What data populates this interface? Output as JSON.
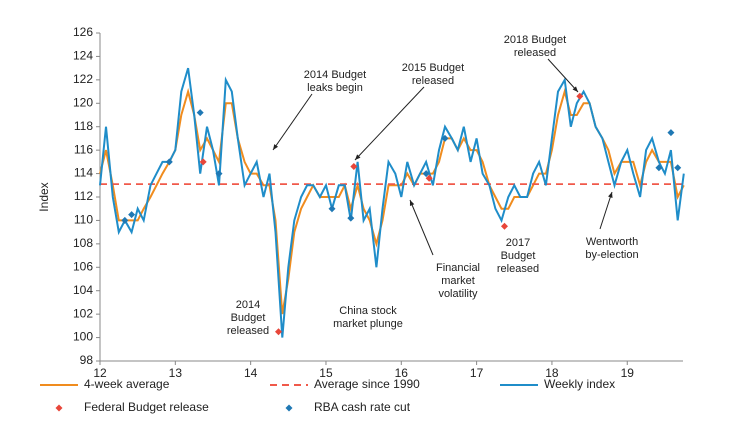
{
  "chart_data": {
    "type": "line",
    "ylabel": "Index",
    "x": [
      12.0,
      12.08,
      12.17,
      12.25,
      12.33,
      12.42,
      12.5,
      12.58,
      12.67,
      12.75,
      12.83,
      12.92,
      13.0,
      13.08,
      13.17,
      13.25,
      13.33,
      13.42,
      13.5,
      13.58,
      13.67,
      13.75,
      13.83,
      13.92,
      14.0,
      14.08,
      14.17,
      14.25,
      14.33,
      14.42,
      14.5,
      14.58,
      14.67,
      14.75,
      14.83,
      14.92,
      15.0,
      15.08,
      15.17,
      15.25,
      15.33,
      15.42,
      15.5,
      15.58,
      15.67,
      15.75,
      15.83,
      15.92,
      16.0,
      16.08,
      16.17,
      16.25,
      16.33,
      16.42,
      16.5,
      16.58,
      16.67,
      16.75,
      16.83,
      16.92,
      17.0,
      17.08,
      17.17,
      17.25,
      17.33,
      17.42,
      17.5,
      17.58,
      17.67,
      17.75,
      17.83,
      17.92,
      18.0,
      18.08,
      18.17,
      18.25,
      18.33,
      18.42,
      18.5,
      18.58,
      18.67,
      18.75,
      18.83,
      18.92,
      19.0,
      19.08,
      19.17,
      19.25,
      19.33,
      19.42,
      19.5,
      19.58,
      19.67,
      19.75
    ],
    "series": [
      {
        "name": "4-week average",
        "color": "#f08c1e",
        "style": "solid",
        "values": [
          114,
          116,
          113,
          110,
          110,
          110,
          110,
          111,
          112,
          113,
          114,
          115,
          116,
          119,
          121,
          119,
          116,
          117,
          116,
          115,
          120,
          120,
          117,
          115,
          114,
          114,
          113,
          113,
          110,
          102,
          105,
          109,
          111,
          112,
          113,
          112,
          112,
          112,
          112,
          113,
          111,
          113,
          111,
          110,
          108,
          110,
          113,
          113,
          113,
          114,
          113,
          114,
          114,
          114,
          115,
          117,
          117,
          116,
          117,
          116,
          116,
          115,
          113,
          112,
          111,
          111,
          112,
          112,
          112,
          113,
          114,
          114,
          116,
          119,
          121,
          119,
          119,
          120,
          120,
          118,
          117,
          116,
          114,
          115,
          115,
          115,
          113,
          115,
          116,
          115,
          115,
          115,
          112,
          113
        ]
      },
      {
        "name": "Average since 1990",
        "color": "#f0594a",
        "style": "dashed",
        "values": [
          113.1,
          113.1,
          113.1,
          113.1,
          113.1,
          113.1,
          113.1,
          113.1,
          113.1,
          113.1,
          113.1,
          113.1,
          113.1,
          113.1,
          113.1,
          113.1,
          113.1,
          113.1,
          113.1,
          113.1,
          113.1,
          113.1,
          113.1,
          113.1,
          113.1,
          113.1,
          113.1,
          113.1,
          113.1,
          113.1,
          113.1,
          113.1,
          113.1,
          113.1,
          113.1,
          113.1,
          113.1,
          113.1,
          113.1,
          113.1,
          113.1,
          113.1,
          113.1,
          113.1,
          113.1,
          113.1,
          113.1,
          113.1,
          113.1,
          113.1,
          113.1,
          113.1,
          113.1,
          113.1,
          113.1,
          113.1,
          113.1,
          113.1,
          113.1,
          113.1,
          113.1,
          113.1,
          113.1,
          113.1,
          113.1,
          113.1,
          113.1,
          113.1,
          113.1,
          113.1,
          113.1,
          113.1,
          113.1,
          113.1,
          113.1,
          113.1,
          113.1,
          113.1,
          113.1,
          113.1,
          113.1,
          113.1,
          113.1,
          113.1,
          113.1,
          113.1,
          113.1,
          113.1,
          113.1,
          113.1,
          113.1,
          113.1,
          113.1,
          113.1
        ]
      },
      {
        "name": "Weekly index",
        "color": "#1f8dc9",
        "style": "solid",
        "values": [
          113,
          118,
          112,
          109,
          110,
          109,
          111,
          110,
          113,
          114,
          115,
          115,
          116,
          121,
          123,
          119,
          114,
          118,
          116,
          113,
          122,
          121,
          117,
          113,
          114,
          115,
          112,
          114,
          109,
          100,
          106,
          110,
          112,
          113,
          113,
          112,
          113,
          111,
          113,
          113,
          110,
          115,
          110,
          111,
          106,
          111,
          115,
          114,
          112,
          115,
          113,
          114,
          115,
          113,
          116,
          118,
          117,
          116,
          118,
          115,
          117,
          114,
          113,
          111,
          110,
          112,
          113,
          112,
          112,
          114,
          115,
          113,
          117,
          121,
          122,
          118,
          120,
          121,
          120,
          118,
          117,
          115,
          113,
          115,
          116,
          114,
          112,
          116,
          117,
          115,
          114,
          116,
          110,
          114
        ]
      }
    ],
    "markers": [
      {
        "name": "Federal Budget release",
        "color": "#e8463a",
        "x": [
          13.37,
          14.37,
          15.37,
          16.37,
          17.37,
          18.37
        ],
        "values": [
          115,
          100.5,
          114.6,
          113.6,
          109.5,
          120.6
        ]
      },
      {
        "name": "RBA cash rate cut",
        "color": "#1f78b4",
        "x": [
          12.33,
          12.42,
          12.92,
          13.33,
          13.58,
          15.08,
          15.33,
          16.33,
          16.58,
          19.42,
          19.58,
          19.67
        ],
        "values": [
          110,
          110.5,
          115,
          119.2,
          114,
          111,
          110.2,
          114,
          117,
          114.5,
          117.5,
          114.5
        ]
      }
    ],
    "annotations": [
      {
        "lines": [
          "2014 Budget",
          "leaks begin"
        ]
      },
      {
        "lines": [
          "2015 Budget",
          "released"
        ]
      },
      {
        "lines": [
          "2018 Budget",
          "released"
        ]
      },
      {
        "lines": [
          "2014",
          "Budget",
          "released"
        ]
      },
      {
        "lines": [
          "China stock",
          "market plunge"
        ]
      },
      {
        "lines": [
          "Financial",
          "market",
          "volatility"
        ]
      },
      {
        "lines": [
          "2017",
          "Budget",
          "released"
        ]
      },
      {
        "lines": [
          "Wentworth",
          "by-election"
        ]
      }
    ],
    "xlim": [
      12,
      19.74
    ],
    "xticks": [
      12,
      13,
      14,
      15,
      16,
      17,
      18,
      19
    ],
    "ylim": [
      98,
      126
    ],
    "yticks": [
      98,
      100,
      102,
      104,
      106,
      108,
      110,
      112,
      114,
      116,
      118,
      120,
      122,
      124,
      126
    ],
    "grid": false
  }
}
